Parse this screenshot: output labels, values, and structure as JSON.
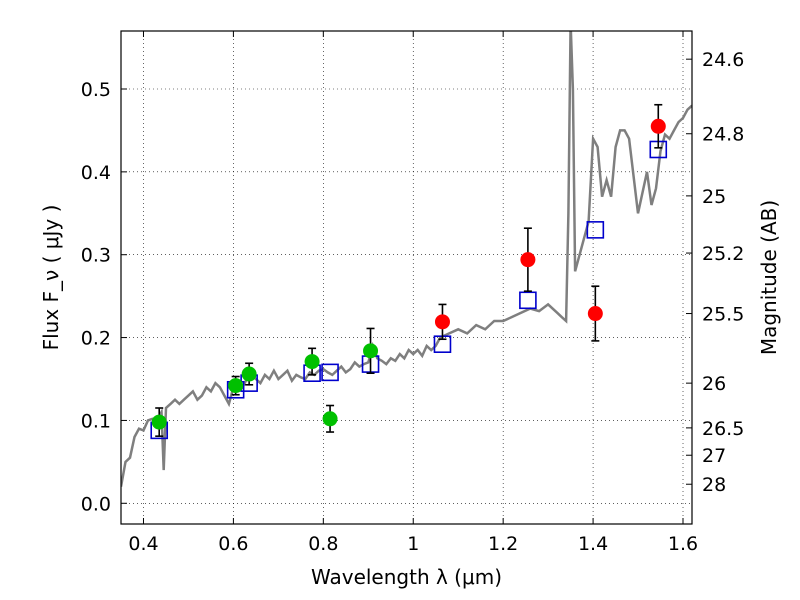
{
  "chart_data": {
    "type": "scatter",
    "xlabel": "Wavelength  λ (μm)",
    "ylabel": "Flux  F_ν  ( μJy )",
    "y2label": "Magnitude (AB)",
    "xlim": [
      0.35,
      1.62
    ],
    "ylim": [
      -0.025,
      0.57
    ],
    "xticks": [
      0.4,
      0.6,
      0.8,
      1.0,
      1.2,
      1.4,
      1.6
    ],
    "xtick_labels": [
      "0.4",
      "0.6",
      "0.8",
      "1",
      "1.2",
      "1.4",
      "1.6"
    ],
    "yticks": [
      0.0,
      0.1,
      0.2,
      0.3,
      0.4,
      0.5
    ],
    "ytick_labels": [
      "0.0",
      "0.1",
      "0.2",
      "0.3",
      "0.4",
      "0.5"
    ],
    "magnitude_ticks": [
      {
        "label": "24.6",
        "flux": 0.536
      },
      {
        "label": "24.8",
        "flux": 0.446
      },
      {
        "label": "25",
        "flux": 0.371
      },
      {
        "label": "25.2",
        "flux": 0.302
      },
      {
        "label": "25.5",
        "flux": 0.229
      },
      {
        "label": "26",
        "flux": 0.145
      },
      {
        "label": "26.5",
        "flux": 0.091
      },
      {
        "label": "27",
        "flux": 0.058
      },
      {
        "label": "28",
        "flux": 0.023
      }
    ],
    "grid": true,
    "colors": {
      "model": "#7f7f7f",
      "green": "#00c000",
      "red": "#ff0000",
      "square": "#0000cc",
      "errorbar": "#000000"
    },
    "model_spectrum": {
      "x": [
        0.35,
        0.36,
        0.37,
        0.38,
        0.39,
        0.4,
        0.41,
        0.42,
        0.43,
        0.44,
        0.445,
        0.45,
        0.46,
        0.47,
        0.48,
        0.49,
        0.5,
        0.51,
        0.52,
        0.53,
        0.54,
        0.55,
        0.56,
        0.57,
        0.58,
        0.59,
        0.6,
        0.61,
        0.62,
        0.63,
        0.64,
        0.65,
        0.66,
        0.67,
        0.68,
        0.69,
        0.7,
        0.71,
        0.72,
        0.73,
        0.74,
        0.75,
        0.76,
        0.77,
        0.78,
        0.79,
        0.8,
        0.81,
        0.82,
        0.83,
        0.84,
        0.85,
        0.86,
        0.87,
        0.88,
        0.89,
        0.9,
        0.91,
        0.92,
        0.93,
        0.94,
        0.95,
        0.96,
        0.97,
        0.98,
        0.99,
        1.0,
        1.01,
        1.02,
        1.03,
        1.04,
        1.05,
        1.06,
        1.08,
        1.1,
        1.12,
        1.14,
        1.16,
        1.18,
        1.2,
        1.22,
        1.24,
        1.26,
        1.28,
        1.3,
        1.32,
        1.33,
        1.34,
        1.345,
        1.35,
        1.355,
        1.36,
        1.37,
        1.38,
        1.39,
        1.4,
        1.41,
        1.42,
        1.43,
        1.44,
        1.45,
        1.46,
        1.47,
        1.48,
        1.5,
        1.52,
        1.53,
        1.54,
        1.55,
        1.56,
        1.57,
        1.58,
        1.59,
        1.6,
        1.61,
        1.62
      ],
      "y": [
        0.02,
        0.05,
        0.055,
        0.08,
        0.09,
        0.088,
        0.1,
        0.102,
        0.1,
        0.11,
        0.04,
        0.115,
        0.12,
        0.125,
        0.12,
        0.125,
        0.13,
        0.135,
        0.125,
        0.13,
        0.14,
        0.135,
        0.145,
        0.14,
        0.13,
        0.12,
        0.14,
        0.148,
        0.14,
        0.15,
        0.155,
        0.15,
        0.145,
        0.155,
        0.15,
        0.16,
        0.15,
        0.155,
        0.16,
        0.148,
        0.155,
        0.152,
        0.15,
        0.158,
        0.155,
        0.16,
        0.162,
        0.158,
        0.155,
        0.16,
        0.165,
        0.158,
        0.162,
        0.17,
        0.165,
        0.168,
        0.17,
        0.19,
        0.175,
        0.172,
        0.168,
        0.175,
        0.172,
        0.18,
        0.175,
        0.185,
        0.18,
        0.185,
        0.178,
        0.19,
        0.185,
        0.19,
        0.2,
        0.205,
        0.21,
        0.205,
        0.215,
        0.21,
        0.22,
        0.22,
        0.225,
        0.23,
        0.235,
        0.232,
        0.24,
        0.23,
        0.225,
        0.22,
        0.35,
        0.58,
        0.5,
        0.28,
        0.3,
        0.32,
        0.34,
        0.44,
        0.43,
        0.37,
        0.39,
        0.37,
        0.43,
        0.45,
        0.45,
        0.44,
        0.35,
        0.4,
        0.36,
        0.38,
        0.425,
        0.445,
        0.44,
        0.45,
        0.46,
        0.465,
        0.475,
        0.48
      ]
    },
    "series": [
      {
        "marker": "open-square",
        "color": "#0000cc",
        "points": [
          [
            0.435,
            0.088
          ],
          [
            0.605,
            0.137
          ],
          [
            0.635,
            0.145
          ],
          [
            0.775,
            0.157
          ],
          [
            0.815,
            0.158
          ],
          [
            0.905,
            0.168
          ],
          [
            1.065,
            0.192
          ],
          [
            1.255,
            0.245
          ],
          [
            1.405,
            0.33
          ],
          [
            1.545,
            0.427
          ]
        ]
      },
      {
        "marker": "filled-circle",
        "color": "#00c000",
        "points": [
          {
            "x": 0.435,
            "y": 0.098,
            "yerr": 0.017
          },
          {
            "x": 0.605,
            "y": 0.142,
            "yerr": 0.011
          },
          {
            "x": 0.635,
            "y": 0.156,
            "yerr": 0.013
          },
          {
            "x": 0.775,
            "y": 0.171,
            "yerr": 0.016
          },
          {
            "x": 0.815,
            "y": 0.102,
            "yerr": 0.016
          },
          {
            "x": 0.905,
            "y": 0.184,
            "yerr": 0.027
          }
        ]
      },
      {
        "marker": "filled-circle",
        "color": "#ff0000",
        "points": [
          {
            "x": 1.065,
            "y": 0.219,
            "yerr": 0.021
          },
          {
            "x": 1.255,
            "y": 0.294,
            "yerr": 0.038
          },
          {
            "x": 1.405,
            "y": 0.229,
            "yerr": 0.033
          },
          {
            "x": 1.545,
            "y": 0.455,
            "yerr": 0.026
          }
        ]
      }
    ]
  }
}
